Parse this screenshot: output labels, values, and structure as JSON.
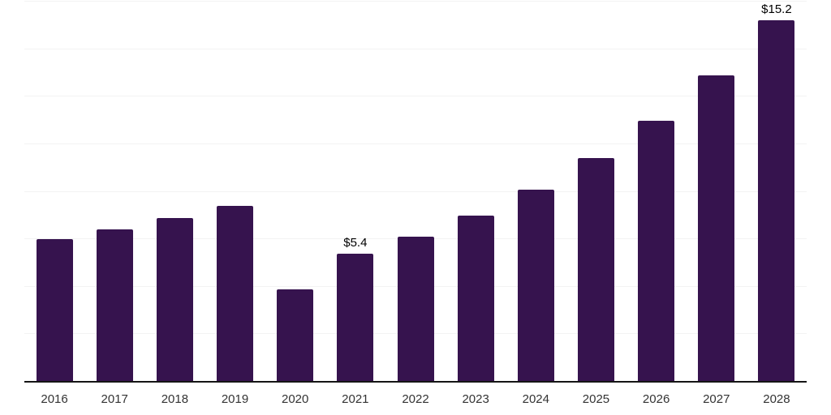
{
  "chart_data": {
    "type": "bar",
    "title": "",
    "categories": [
      "2016",
      "2017",
      "2018",
      "2019",
      "2020",
      "2021",
      "2022",
      "2023",
      "2024",
      "2025",
      "2026",
      "2027",
      "2028"
    ],
    "values": [
      6.0,
      6.4,
      6.9,
      7.4,
      3.9,
      5.4,
      6.1,
      7.0,
      8.1,
      9.4,
      11.0,
      12.9,
      15.2
    ],
    "data_labels": [
      "",
      "",
      "",
      "",
      "",
      "$5.4",
      "",
      "",
      "",
      "",
      "",
      "",
      "$15.2"
    ],
    "xlabel": "",
    "ylabel": "",
    "ylim": [
      0,
      16
    ],
    "gridline_step": 2,
    "grid": true,
    "legend_position": "none",
    "y_axis_labels_shown": false,
    "colors": {
      "bar": "#36134E",
      "gridline": "#f3f3f3",
      "axis_line": "#151515",
      "tick_label": "#333333",
      "data_label": "#000000",
      "background": "#ffffff"
    }
  }
}
